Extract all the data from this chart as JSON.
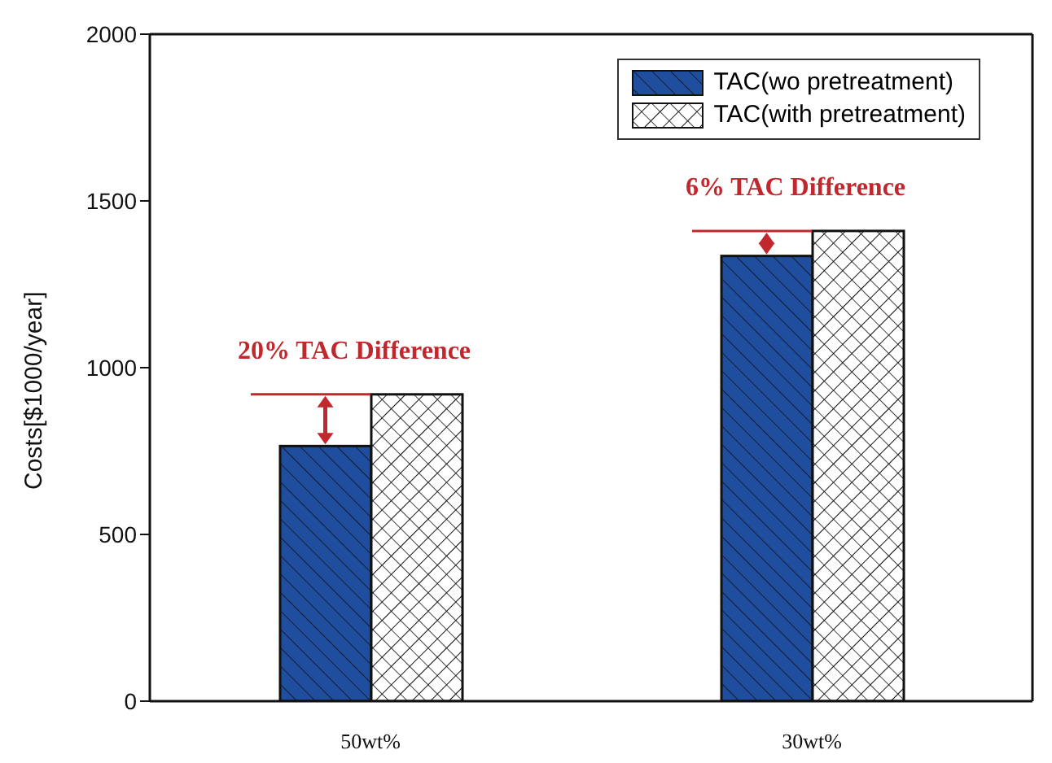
{
  "chart_data": {
    "type": "bar",
    "ylabel": "Costs[$1000/year]",
    "categories": [
      "50wt%",
      "30wt%"
    ],
    "series": [
      {
        "name": "TAC(wo pretreatment)",
        "color": "#1f4e9e",
        "values": [
          765,
          1335
        ]
      },
      {
        "name": "TAC(with pretreatment)",
        "color": "#ffffff",
        "values": [
          920,
          1410
        ]
      }
    ],
    "ylim": [
      0,
      2000
    ],
    "yticks": [
      0,
      500,
      1000,
      1500,
      2000
    ],
    "legend": "top right",
    "annotations": [
      {
        "text": "20% TAC Difference",
        "x": "50wt%",
        "y": 920
      },
      {
        "text": "6% TAC Difference",
        "x": "30wt%",
        "y": 1410
      }
    ]
  }
}
